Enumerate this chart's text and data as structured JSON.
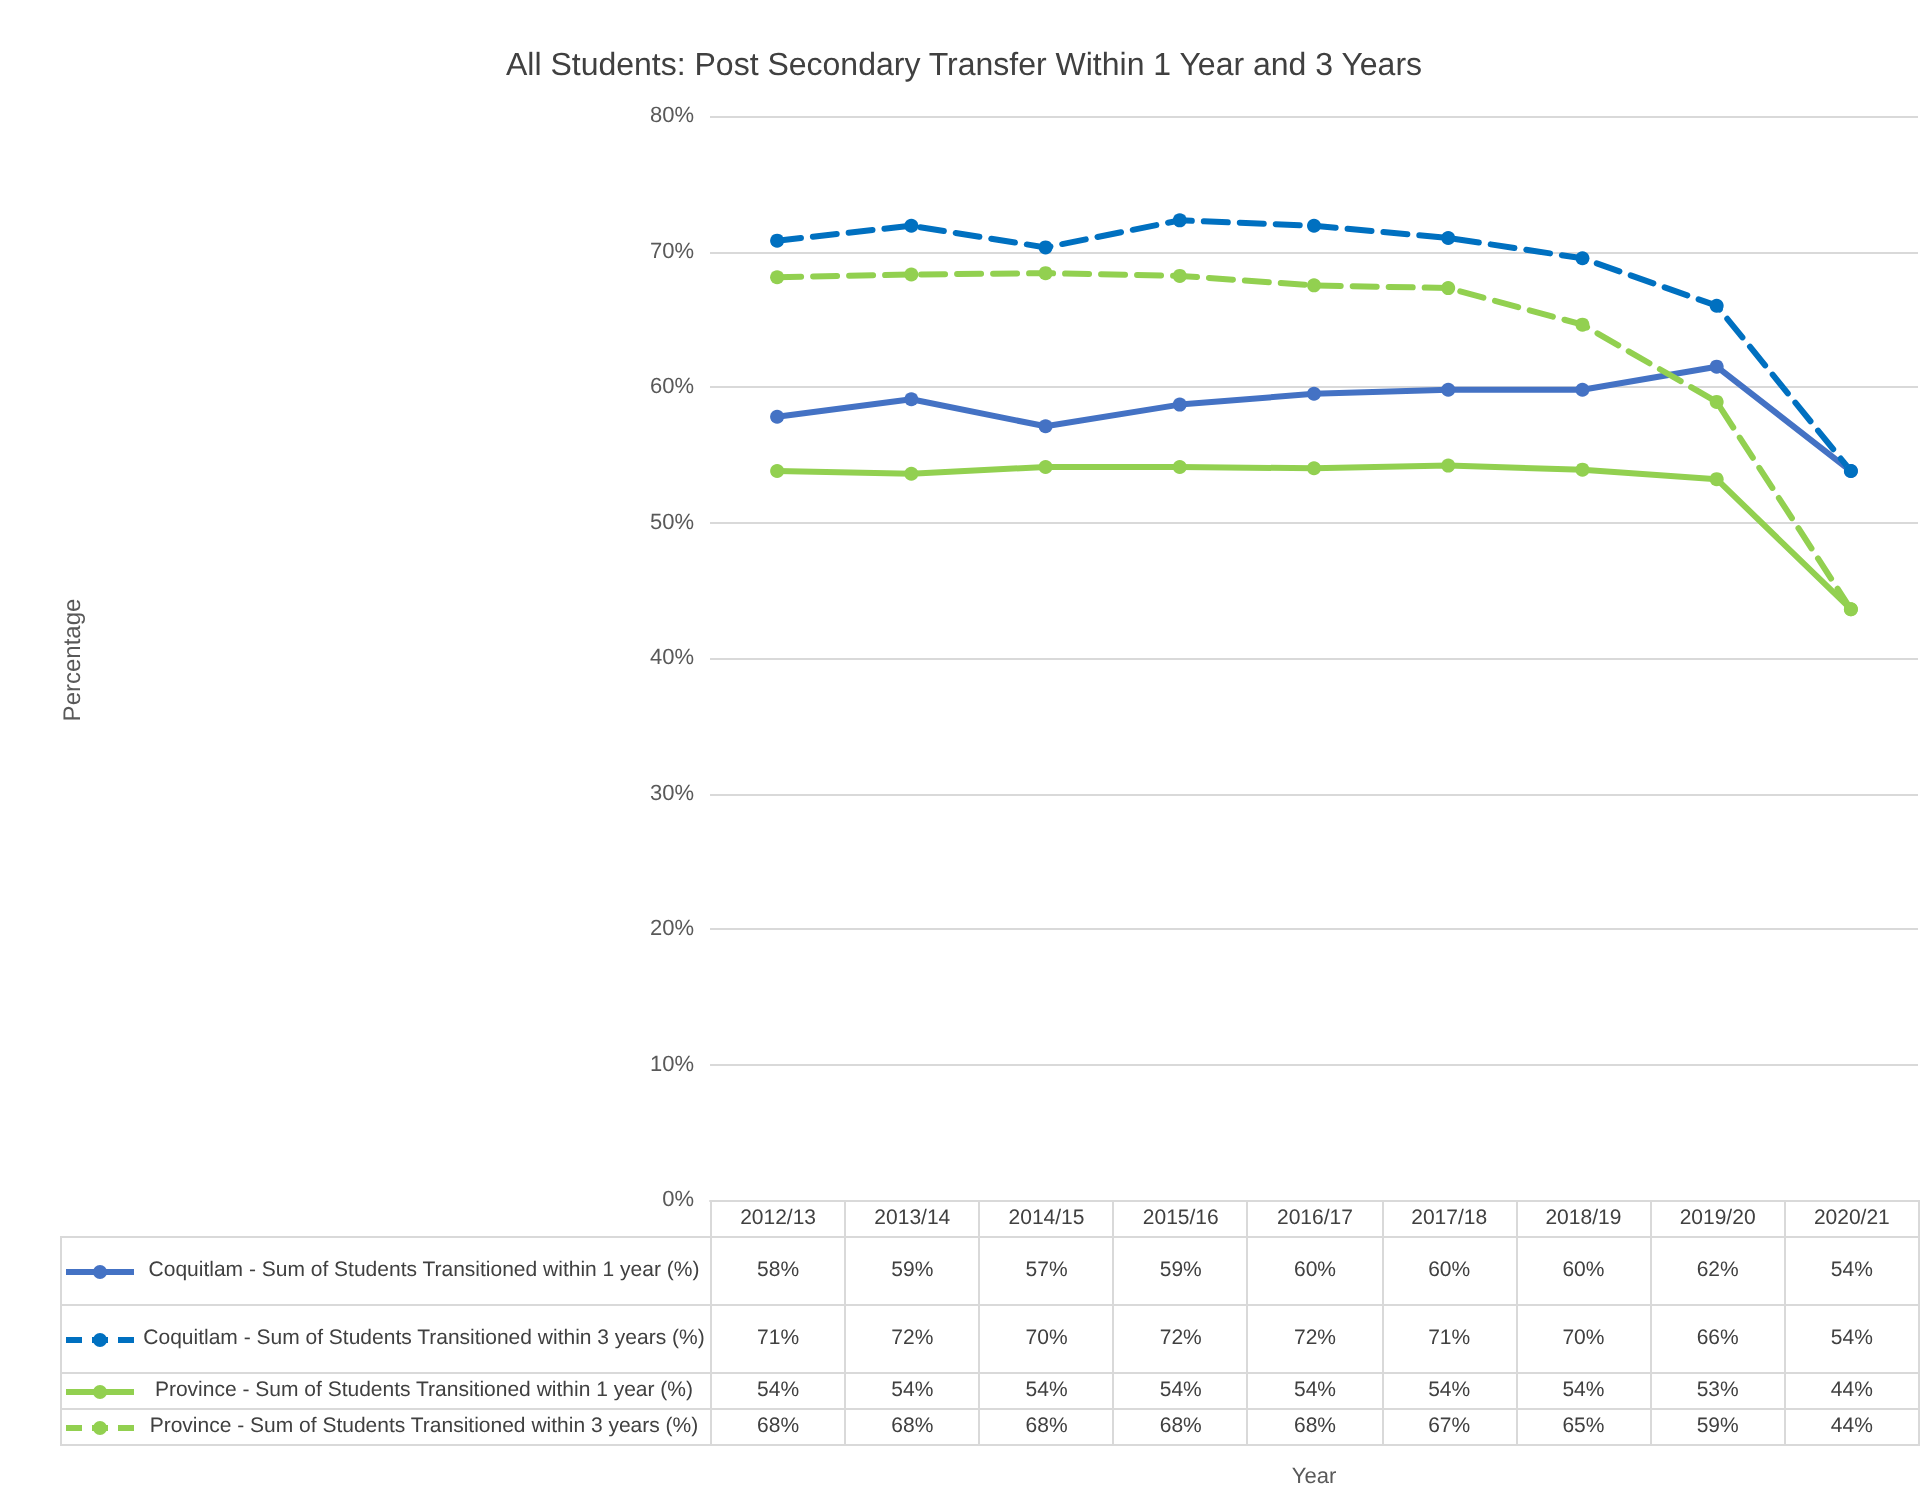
{
  "chart_data": {
    "type": "line",
    "title": "All Students: Post Secondary Transfer Within 1 Year and 3 Years",
    "annotations": [
      "Percentage",
      "Year"
    ],
    "categories": [
      "2012/13",
      "2013/14",
      "2014/15",
      "2015/16",
      "2016/17",
      "2017/18",
      "2018/19",
      "2019/20",
      "2020/21"
    ],
    "series": [
      {
        "name": "Coquitlam - Sum of Students Transitioned within 1 year (%)",
        "color": "#4472c4",
        "line_style": "solid",
        "values": [
          57.8,
          59.1,
          57.1,
          58.7,
          59.5,
          59.8,
          59.8,
          61.5,
          53.8
        ],
        "value_labels": [
          "58%",
          "59%",
          "57%",
          "59%",
          "60%",
          "60%",
          "60%",
          "62%",
          "54%"
        ]
      },
      {
        "name": "Coquitlam - Sum of Students Transitioned within 3 years (%)",
        "color": "#0070c0",
        "line_style": "dashed",
        "values": [
          70.8,
          71.9,
          70.3,
          72.3,
          71.9,
          71.0,
          69.5,
          66.0,
          53.8
        ],
        "value_labels": [
          "71%",
          "72%",
          "70%",
          "72%",
          "72%",
          "71%",
          "70%",
          "66%",
          "54%"
        ]
      },
      {
        "name": "Province - Sum of Students Transitioned within 1 year (%)",
        "color": "#92d050",
        "line_style": "solid",
        "values": [
          53.8,
          53.6,
          54.1,
          54.1,
          54.0,
          54.2,
          53.9,
          53.2,
          43.6
        ],
        "value_labels": [
          "54%",
          "54%",
          "54%",
          "54%",
          "54%",
          "54%",
          "54%",
          "53%",
          "44%"
        ]
      },
      {
        "name": "Province - Sum of Students Transitioned within 3 years (%)",
        "color": "#92d050",
        "line_style": "dashed",
        "values": [
          68.1,
          68.3,
          68.4,
          68.2,
          67.5,
          67.3,
          64.6,
          58.9,
          43.6
        ],
        "value_labels": [
          "68%",
          "68%",
          "68%",
          "68%",
          "68%",
          "67%",
          "65%",
          "59%",
          "44%"
        ]
      }
    ],
    "ylim": [
      0,
      80
    ],
    "yticks": [
      {
        "value": 0,
        "label": "0%"
      },
      {
        "value": 10,
        "label": "10%"
      },
      {
        "value": 20,
        "label": "20%"
      },
      {
        "value": 30,
        "label": "30%"
      },
      {
        "value": 40,
        "label": "40%"
      },
      {
        "value": 50,
        "label": "50%"
      },
      {
        "value": 60,
        "label": "60%"
      },
      {
        "value": 70,
        "label": "70%"
      },
      {
        "value": 80,
        "label": "80%"
      }
    ],
    "grid": "y",
    "marker": "circle",
    "legend": "bottom"
  }
}
